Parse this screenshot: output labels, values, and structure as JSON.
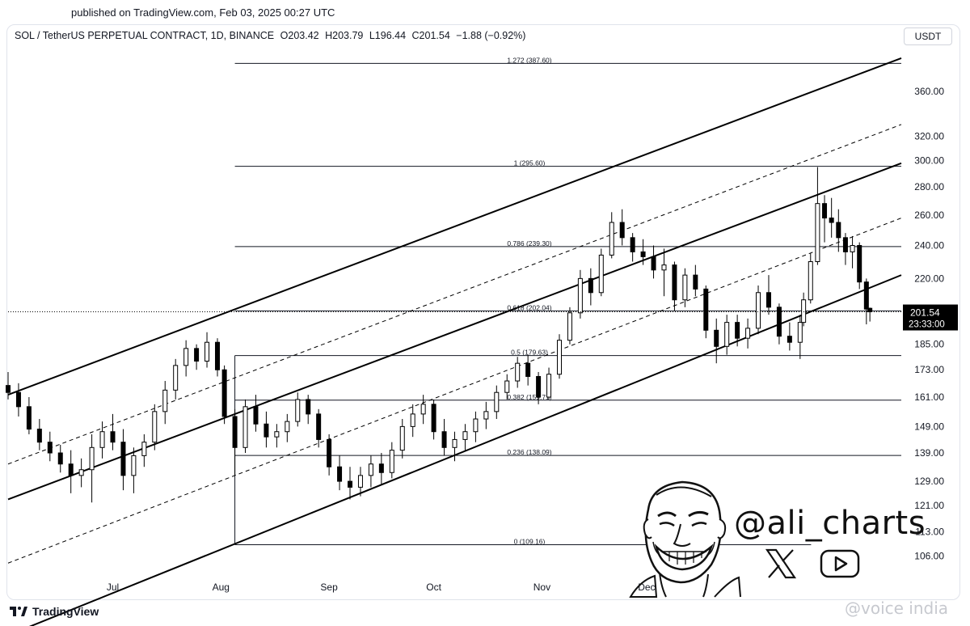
{
  "header": {
    "published": "published on TradingView.com, Feb 03, 2025 00:27 UTC"
  },
  "symbol_info": {
    "symbol": "SOL / TetherUS PERPETUAL CONTRACT, 1D, BINANCE",
    "open": "O203.42",
    "high": "H203.79",
    "low": "L196.44",
    "close": "C201.54",
    "change": "−1.88 (−0.92%)"
  },
  "currency_button": "USDT",
  "footer": {
    "brand": "TradingView",
    "watermark": "@voice india"
  },
  "author": {
    "handle": "@ali_charts",
    "social_icons": [
      "x-logo-icon",
      "youtube-play-icon"
    ]
  },
  "colors": {
    "up": "#089981",
    "down": "#f23645",
    "candle": "#000000",
    "price_tag": "#000000",
    "grid_text": "#131722"
  },
  "chart_data": {
    "type": "candlestick",
    "title": "SOL / TetherUS PERPETUAL CONTRACT, 1D, BINANCE",
    "scale": "log",
    "ylim": [
      101,
      410
    ],
    "y_ticks": [
      360,
      320,
      300,
      280,
      260,
      240,
      220,
      185,
      173,
      161,
      149,
      139,
      129,
      121,
      113,
      106
    ],
    "y_tick_labels": [
      "360.00",
      "320.00",
      "300.00",
      "280.00",
      "260.00",
      "240.00",
      "220.00",
      "185.00",
      "173.00",
      "161.00",
      "149.00",
      "139.00",
      "129.00",
      "121.00",
      "113.00",
      "106.00"
    ],
    "x_range": [
      "2024-06-01",
      "2025-02-12"
    ],
    "x_ticks": [
      {
        "label": "Jul",
        "date": "2024-07-01"
      },
      {
        "label": "Aug",
        "date": "2024-08-01"
      },
      {
        "label": "Sep",
        "date": "2024-09-01"
      },
      {
        "label": "Oct",
        "date": "2024-10-01"
      },
      {
        "label": "Nov",
        "date": "2024-11-01"
      },
      {
        "label": "Dec",
        "date": "2024-12-01"
      }
    ],
    "current_price": {
      "value": 201.54,
      "label": "201.54",
      "countdown": "23:33:00"
    },
    "fibonacci": {
      "start_date": "2024-08-05",
      "end_date": "2025-01-19",
      "levels": [
        {
          "label": "1.272 (387.60)",
          "value": 387.6
        },
        {
          "label": "1 (295.60)",
          "value": 295.6
        },
        {
          "label": "0.786 (239.30)",
          "value": 239.3
        },
        {
          "label": "0.618 (202.04)",
          "value": 202.04
        },
        {
          "label": "0.5 (179.63)",
          "value": 179.63
        },
        {
          "label": "0.382 (159.71)",
          "value": 159.71
        },
        {
          "label": "0.236 (138.09)",
          "value": 138.09
        },
        {
          "label": "0 (109.16)",
          "value": 109.16
        }
      ]
    },
    "channel": {
      "start_date": "2024-06-01",
      "end_date": "2025-02-12",
      "lines": [
        {
          "style": "solid",
          "start": 162,
          "end": 393
        },
        {
          "style": "dashed",
          "start": 135,
          "end": 330
        },
        {
          "style": "solid",
          "start": 123,
          "end": 298
        },
        {
          "style": "dashed",
          "start": 104,
          "end": 258
        },
        {
          "style": "solid",
          "start": 86,
          "end": 222
        }
      ]
    },
    "candles": [
      {
        "date": "2024-06-01",
        "o": 166,
        "h": 172,
        "l": 160,
        "c": 163
      },
      {
        "date": "2024-06-04",
        "o": 163,
        "h": 167,
        "l": 153,
        "c": 157
      },
      {
        "date": "2024-06-07",
        "o": 157,
        "h": 161,
        "l": 146,
        "c": 148
      },
      {
        "date": "2024-06-10",
        "o": 148,
        "h": 152,
        "l": 140,
        "c": 143
      },
      {
        "date": "2024-06-13",
        "o": 143,
        "h": 147,
        "l": 136,
        "c": 139
      },
      {
        "date": "2024-06-16",
        "o": 139,
        "h": 142,
        "l": 132,
        "c": 135
      },
      {
        "date": "2024-06-19",
        "o": 135,
        "h": 140,
        "l": 125,
        "c": 131
      },
      {
        "date": "2024-06-22",
        "o": 131,
        "h": 137,
        "l": 127,
        "c": 133
      },
      {
        "date": "2024-06-25",
        "o": 133,
        "h": 146,
        "l": 122,
        "c": 141
      },
      {
        "date": "2024-06-28",
        "o": 141,
        "h": 151,
        "l": 137,
        "c": 147
      },
      {
        "date": "2024-07-01",
        "o": 147,
        "h": 154,
        "l": 140,
        "c": 143
      },
      {
        "date": "2024-07-04",
        "o": 143,
        "h": 148,
        "l": 126,
        "c": 131
      },
      {
        "date": "2024-07-07",
        "o": 131,
        "h": 141,
        "l": 125,
        "c": 138
      },
      {
        "date": "2024-07-10",
        "o": 138,
        "h": 146,
        "l": 134,
        "c": 143
      },
      {
        "date": "2024-07-13",
        "o": 143,
        "h": 158,
        "l": 140,
        "c": 155
      },
      {
        "date": "2024-07-16",
        "o": 155,
        "h": 168,
        "l": 150,
        "c": 164
      },
      {
        "date": "2024-07-19",
        "o": 164,
        "h": 178,
        "l": 160,
        "c": 175
      },
      {
        "date": "2024-07-22",
        "o": 175,
        "h": 187,
        "l": 170,
        "c": 183
      },
      {
        "date": "2024-07-25",
        "o": 183,
        "h": 185,
        "l": 173,
        "c": 177
      },
      {
        "date": "2024-07-28",
        "o": 177,
        "h": 191,
        "l": 174,
        "c": 186
      },
      {
        "date": "2024-07-31",
        "o": 186,
        "h": 188,
        "l": 170,
        "c": 173
      },
      {
        "date": "2024-08-02",
        "o": 173,
        "h": 175,
        "l": 150,
        "c": 153
      },
      {
        "date": "2024-08-05",
        "o": 153,
        "h": 156,
        "l": 131,
        "c": 141
      },
      {
        "date": "2024-08-08",
        "o": 141,
        "h": 160,
        "l": 139,
        "c": 157
      },
      {
        "date": "2024-08-11",
        "o": 157,
        "h": 162,
        "l": 147,
        "c": 150
      },
      {
        "date": "2024-08-14",
        "o": 150,
        "h": 155,
        "l": 141,
        "c": 145
      },
      {
        "date": "2024-08-17",
        "o": 145,
        "h": 150,
        "l": 141,
        "c": 147
      },
      {
        "date": "2024-08-20",
        "o": 147,
        "h": 154,
        "l": 143,
        "c": 151
      },
      {
        "date": "2024-08-23",
        "o": 151,
        "h": 163,
        "l": 149,
        "c": 160
      },
      {
        "date": "2024-08-26",
        "o": 160,
        "h": 162,
        "l": 150,
        "c": 154
      },
      {
        "date": "2024-08-29",
        "o": 154,
        "h": 156,
        "l": 141,
        "c": 144
      },
      {
        "date": "2024-09-01",
        "o": 144,
        "h": 146,
        "l": 131,
        "c": 134
      },
      {
        "date": "2024-09-04",
        "o": 134,
        "h": 138,
        "l": 126,
        "c": 129
      },
      {
        "date": "2024-09-07",
        "o": 129,
        "h": 134,
        "l": 123,
        "c": 127
      },
      {
        "date": "2024-09-10",
        "o": 127,
        "h": 134,
        "l": 124,
        "c": 131
      },
      {
        "date": "2024-09-13",
        "o": 131,
        "h": 138,
        "l": 127,
        "c": 135
      },
      {
        "date": "2024-09-16",
        "o": 135,
        "h": 139,
        "l": 128,
        "c": 132
      },
      {
        "date": "2024-09-19",
        "o": 132,
        "h": 143,
        "l": 130,
        "c": 140
      },
      {
        "date": "2024-09-22",
        "o": 140,
        "h": 152,
        "l": 137,
        "c": 149
      },
      {
        "date": "2024-09-25",
        "o": 149,
        "h": 158,
        "l": 145,
        "c": 154
      },
      {
        "date": "2024-09-28",
        "o": 154,
        "h": 162,
        "l": 150,
        "c": 158
      },
      {
        "date": "2024-10-01",
        "o": 158,
        "h": 160,
        "l": 144,
        "c": 147
      },
      {
        "date": "2024-10-04",
        "o": 147,
        "h": 152,
        "l": 138,
        "c": 141
      },
      {
        "date": "2024-10-07",
        "o": 141,
        "h": 147,
        "l": 136,
        "c": 144
      },
      {
        "date": "2024-10-10",
        "o": 144,
        "h": 150,
        "l": 140,
        "c": 147
      },
      {
        "date": "2024-10-13",
        "o": 147,
        "h": 155,
        "l": 143,
        "c": 152
      },
      {
        "date": "2024-10-16",
        "o": 152,
        "h": 159,
        "l": 148,
        "c": 155
      },
      {
        "date": "2024-10-19",
        "o": 155,
        "h": 166,
        "l": 152,
        "c": 163
      },
      {
        "date": "2024-10-22",
        "o": 163,
        "h": 171,
        "l": 160,
        "c": 168
      },
      {
        "date": "2024-10-25",
        "o": 168,
        "h": 179,
        "l": 165,
        "c": 176
      },
      {
        "date": "2024-10-28",
        "o": 176,
        "h": 180,
        "l": 166,
        "c": 170
      },
      {
        "date": "2024-10-31",
        "o": 170,
        "h": 172,
        "l": 158,
        "c": 161
      },
      {
        "date": "2024-11-03",
        "o": 161,
        "h": 174,
        "l": 160,
        "c": 171
      },
      {
        "date": "2024-11-06",
        "o": 171,
        "h": 190,
        "l": 169,
        "c": 187
      },
      {
        "date": "2024-11-09",
        "o": 187,
        "h": 204,
        "l": 185,
        "c": 201
      },
      {
        "date": "2024-11-12",
        "o": 201,
        "h": 225,
        "l": 198,
        "c": 220
      },
      {
        "date": "2024-11-15",
        "o": 220,
        "h": 226,
        "l": 205,
        "c": 212
      },
      {
        "date": "2024-11-18",
        "o": 212,
        "h": 238,
        "l": 210,
        "c": 234
      },
      {
        "date": "2024-11-21",
        "o": 234,
        "h": 262,
        "l": 232,
        "c": 255
      },
      {
        "date": "2024-11-24",
        "o": 255,
        "h": 264,
        "l": 240,
        "c": 245
      },
      {
        "date": "2024-11-27",
        "o": 245,
        "h": 248,
        "l": 230,
        "c": 236
      },
      {
        "date": "2024-11-30",
        "o": 236,
        "h": 244,
        "l": 228,
        "c": 233
      },
      {
        "date": "2024-12-03",
        "o": 233,
        "h": 240,
        "l": 220,
        "c": 225
      },
      {
        "date": "2024-12-06",
        "o": 225,
        "h": 238,
        "l": 210,
        "c": 228
      },
      {
        "date": "2024-12-09",
        "o": 228,
        "h": 230,
        "l": 202,
        "c": 208
      },
      {
        "date": "2024-12-12",
        "o": 208,
        "h": 226,
        "l": 204,
        "c": 222
      },
      {
        "date": "2024-12-15",
        "o": 222,
        "h": 228,
        "l": 210,
        "c": 214
      },
      {
        "date": "2024-12-18",
        "o": 214,
        "h": 216,
        "l": 188,
        "c": 192
      },
      {
        "date": "2024-12-21",
        "o": 192,
        "h": 198,
        "l": 176,
        "c": 184
      },
      {
        "date": "2024-12-24",
        "o": 184,
        "h": 200,
        "l": 180,
        "c": 196
      },
      {
        "date": "2024-12-27",
        "o": 196,
        "h": 200,
        "l": 184,
        "c": 188
      },
      {
        "date": "2024-12-30",
        "o": 188,
        "h": 198,
        "l": 183,
        "c": 193
      },
      {
        "date": "2025-01-02",
        "o": 193,
        "h": 216,
        "l": 190,
        "c": 212
      },
      {
        "date": "2025-01-05",
        "o": 212,
        "h": 222,
        "l": 200,
        "c": 204
      },
      {
        "date": "2025-01-08",
        "o": 204,
        "h": 206,
        "l": 185,
        "c": 189
      },
      {
        "date": "2025-01-11",
        "o": 189,
        "h": 196,
        "l": 182,
        "c": 186
      },
      {
        "date": "2025-01-14",
        "o": 186,
        "h": 200,
        "l": 178,
        "c": 196
      },
      {
        "date": "2025-01-15",
        "o": 196,
        "h": 212,
        "l": 194,
        "c": 208
      },
      {
        "date": "2025-01-17",
        "o": 208,
        "h": 235,
        "l": 206,
        "c": 230
      },
      {
        "date": "2025-01-19",
        "o": 230,
        "h": 295,
        "l": 228,
        "c": 268
      },
      {
        "date": "2025-01-21",
        "o": 268,
        "h": 274,
        "l": 242,
        "c": 258
      },
      {
        "date": "2025-01-23",
        "o": 258,
        "h": 272,
        "l": 245,
        "c": 255
      },
      {
        "date": "2025-01-25",
        "o": 255,
        "h": 264,
        "l": 236,
        "c": 245
      },
      {
        "date": "2025-01-27",
        "o": 245,
        "h": 248,
        "l": 228,
        "c": 236
      },
      {
        "date": "2025-01-29",
        "o": 236,
        "h": 246,
        "l": 226,
        "c": 240
      },
      {
        "date": "2025-01-31",
        "o": 240,
        "h": 242,
        "l": 214,
        "c": 218
      },
      {
        "date": "2025-02-02",
        "o": 218,
        "h": 220,
        "l": 195,
        "c": 203
      },
      {
        "date": "2025-02-03",
        "o": 203.42,
        "h": 203.79,
        "l": 196.44,
        "c": 201.54
      }
    ]
  }
}
